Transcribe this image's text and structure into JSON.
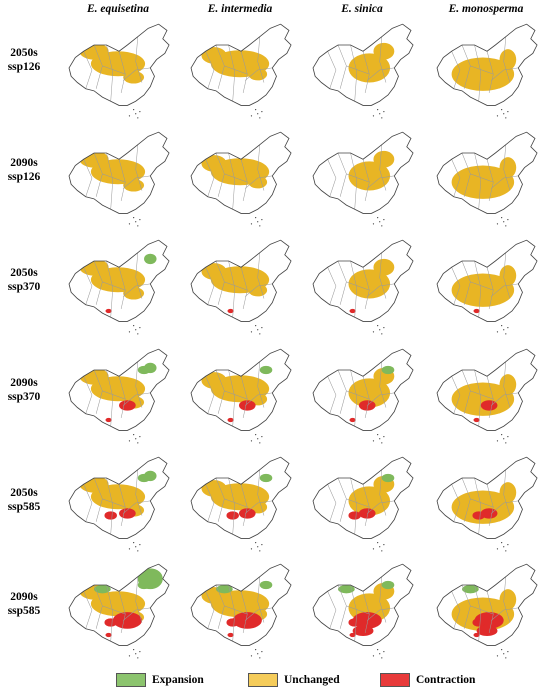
{
  "columns": [
    {
      "label": "E. equisetina"
    },
    {
      "label": "E. intermedia"
    },
    {
      "label": "E. sinica"
    },
    {
      "label": "E. monosperma"
    }
  ],
  "rows": [
    {
      "period": "2050s",
      "scenario": "ssp126"
    },
    {
      "period": "2090s",
      "scenario": "ssp126"
    },
    {
      "period": "2050s",
      "scenario": "ssp370"
    },
    {
      "period": "2090s",
      "scenario": "ssp370"
    },
    {
      "period": "2050s",
      "scenario": "ssp585"
    },
    {
      "period": "2090s",
      "scenario": "ssp585"
    }
  ],
  "legend": {
    "expansion": {
      "label": "Expansion",
      "color": "#8cc46e"
    },
    "unchanged": {
      "label": "Unchanged",
      "color": "#f5cc5a"
    },
    "contraction": {
      "label": "Contraction",
      "color": "#e83a3a"
    }
  },
  "colors": {
    "unchanged_fill": "#e8b524",
    "expansion_fill": "#7fb95c",
    "contraction_fill": "#e02a2a",
    "outline": "#444444",
    "provinces": "#9a9a9a"
  }
}
